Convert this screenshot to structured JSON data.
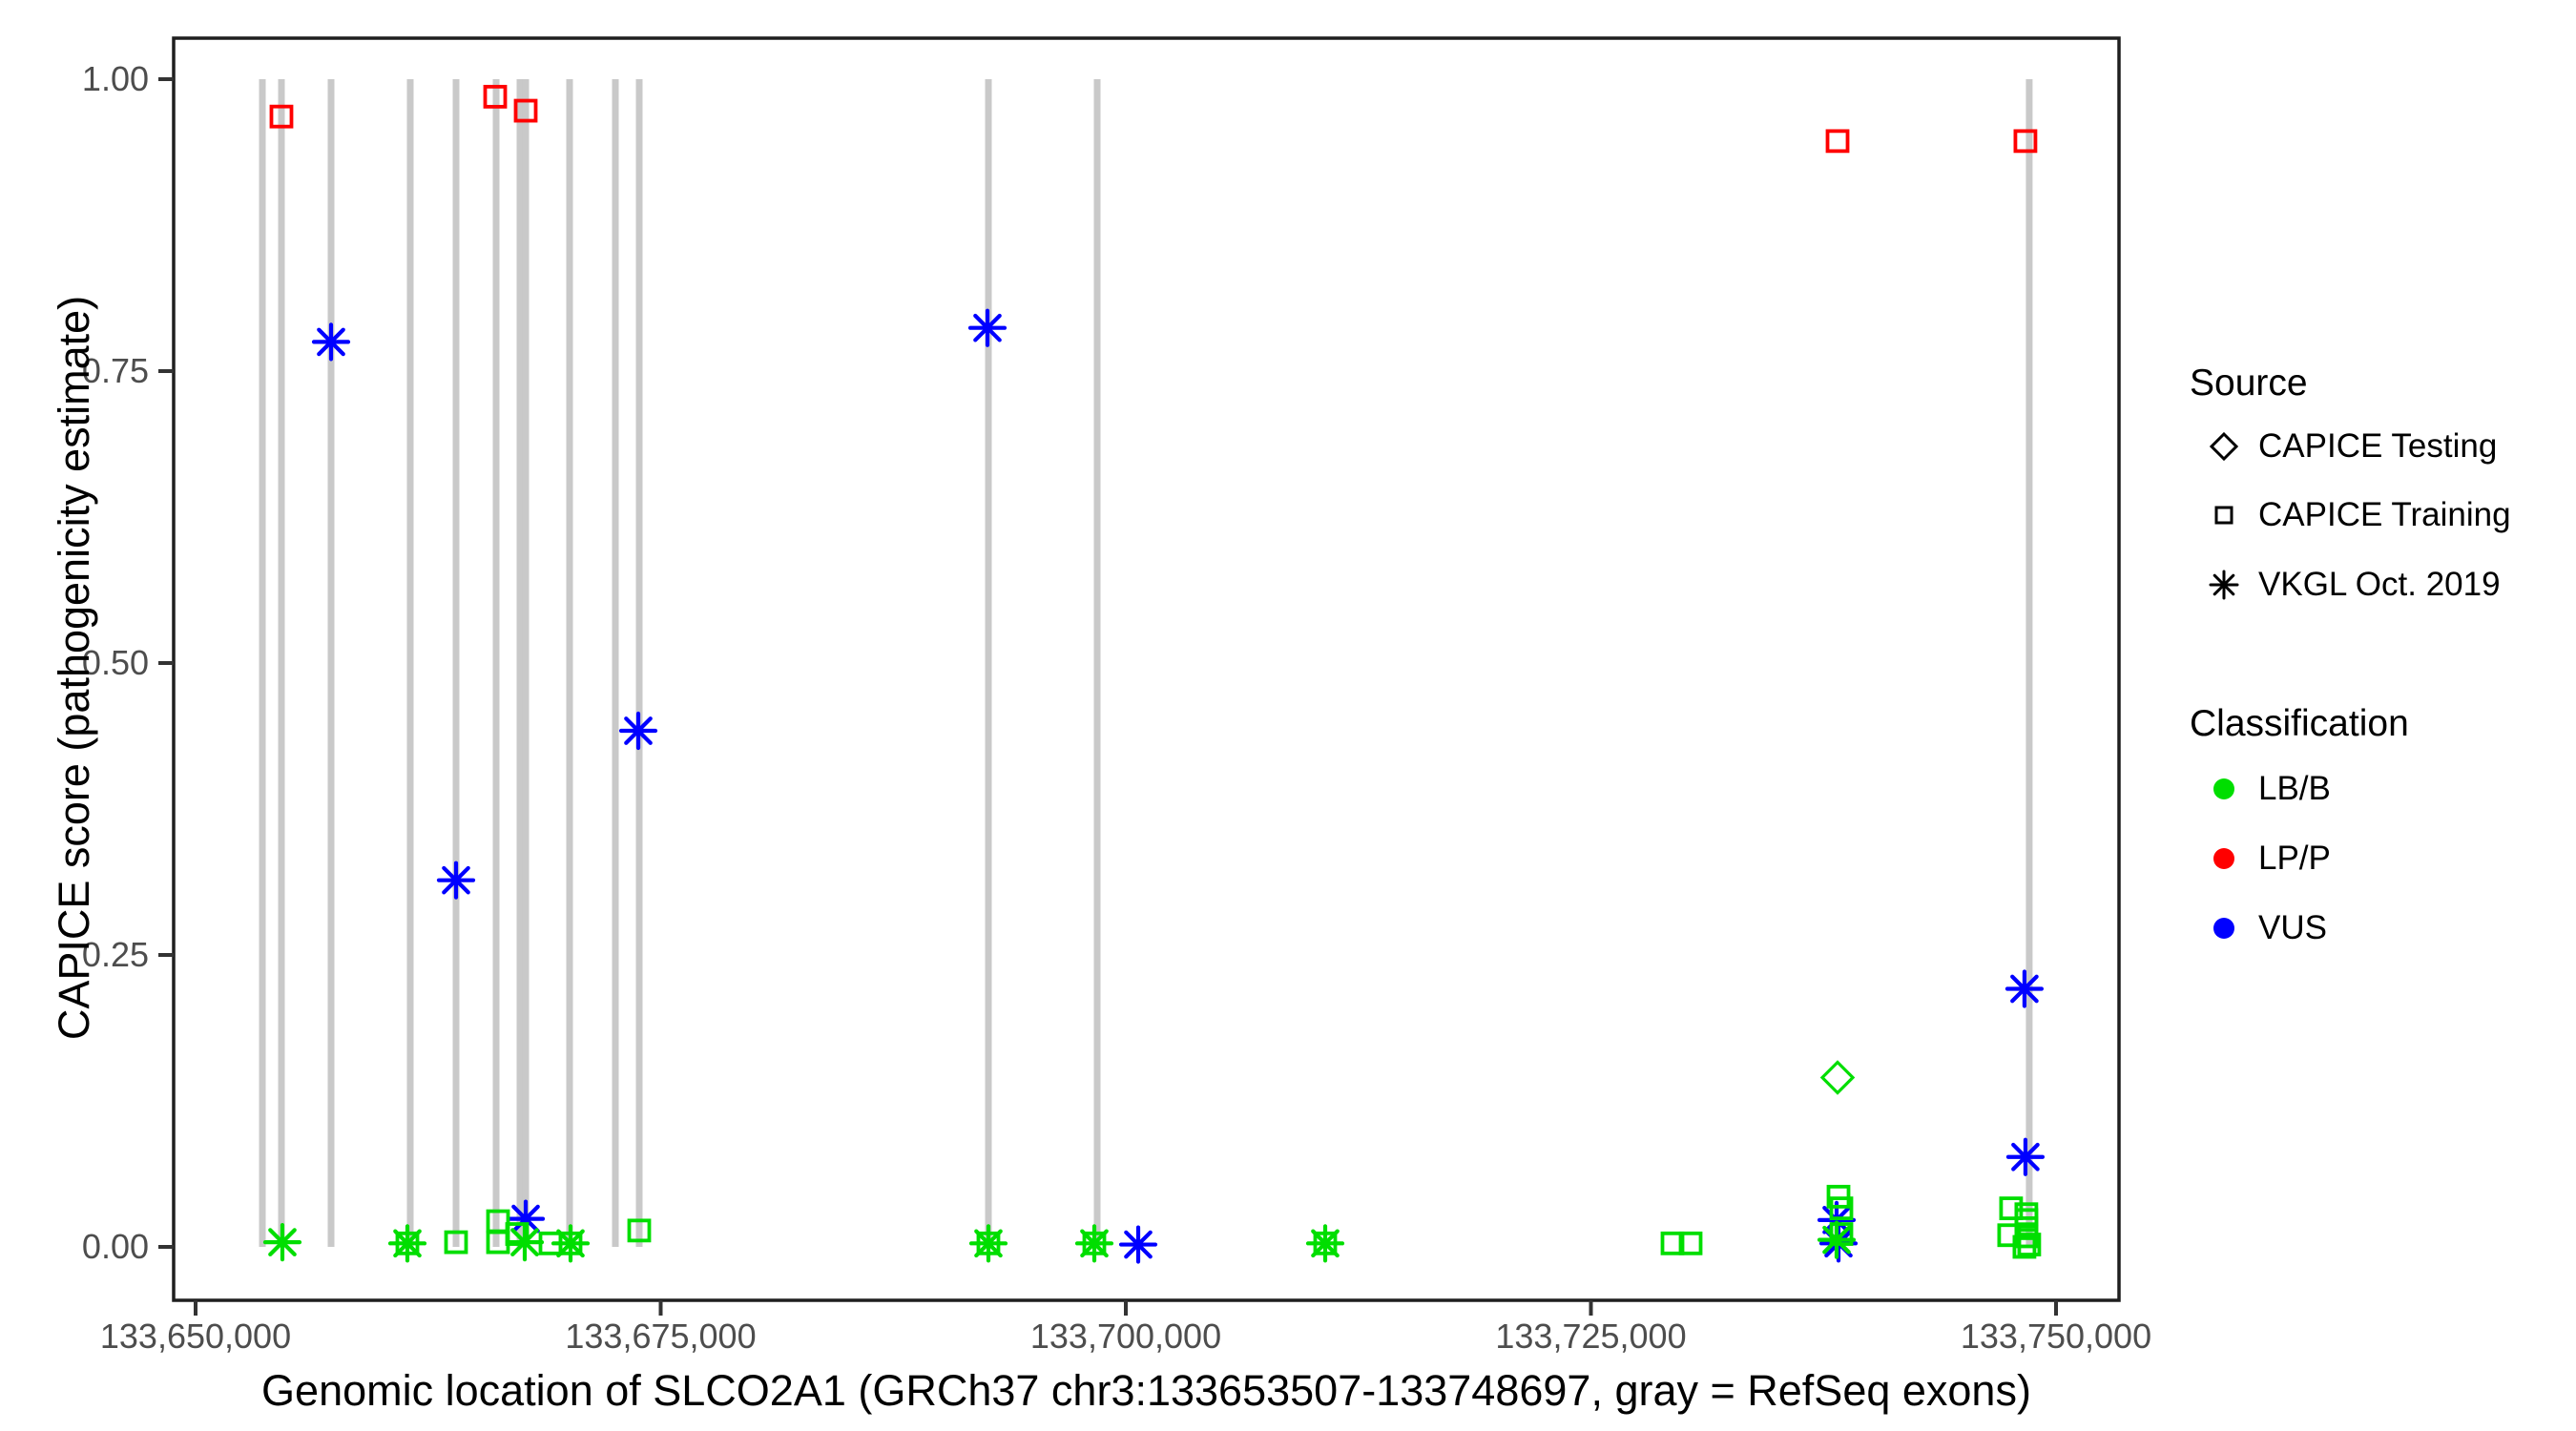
{
  "colors": {
    "lbb_green": "#00DE00",
    "lpp_red": "#FF0000",
    "vus_blue": "#0000FF",
    "exon_gray": "#C9C9C9",
    "border": "#1F1F1F",
    "tick": "#333333",
    "tick_label": "#4D4D4D"
  },
  "axes": {
    "x_title": "Genomic location of SLCO2A1 (GRCh37 chr3:133653507-133748697, gray = RefSeq exons)",
    "y_title": "CAPICE score (pathogenicity estimate)",
    "x_ticks": [
      {
        "value": 133650000,
        "label": "133,650,000"
      },
      {
        "value": 133675000,
        "label": "133,675,000"
      },
      {
        "value": 133700000,
        "label": "133,700,000"
      },
      {
        "value": 133725000,
        "label": "133,725,000"
      },
      {
        "value": 133750000,
        "label": "133,750,000"
      }
    ],
    "y_ticks": [
      {
        "value": 1.0,
        "label": "1.00"
      },
      {
        "value": 0.75,
        "label": "0.75"
      },
      {
        "value": 0.5,
        "label": "0.50"
      },
      {
        "value": 0.25,
        "label": "0.25"
      },
      {
        "value": 0.0,
        "label": "0.00"
      }
    ]
  },
  "legend": {
    "source_title": "Source",
    "source_items": [
      {
        "label": "CAPICE Testing",
        "marker": "diamond"
      },
      {
        "label": "CAPICE Training",
        "marker": "square"
      },
      {
        "label": "VKGL Oct. 2019",
        "marker": "asterisk"
      }
    ],
    "classification_title": "Classification",
    "classification_items": [
      {
        "label": "LB/B",
        "color_key": "lbb_green"
      },
      {
        "label": "LP/P",
        "color_key": "lpp_red"
      },
      {
        "label": "VUS",
        "color_key": "vus_blue"
      }
    ]
  },
  "chart_data": {
    "type": "scatter",
    "title": "",
    "xlabel": "Genomic location of SLCO2A1 (GRCh37 chr3:133653507-133748697, gray = RefSeq exons)",
    "ylabel": "CAPICE score (pathogenicity estimate)",
    "xlim": [
      133648820,
      133753385
    ],
    "ylim": [
      -0.046,
      1.035
    ],
    "grid": false,
    "legend_position": "right",
    "exons_note": "gray vertical segments spanning score 0 to 1 = RefSeq exons",
    "exons": [
      133653590,
      133654615,
      133657282,
      133661538,
      133664000,
      133666154,
      133667436,
      133667744,
      133670103,
      133672564,
      133673846,
      133692615,
      133698462,
      133748560
    ],
    "series": [
      {
        "name": "CAPICE Training / LP/P",
        "source": "CAPICE Training",
        "classification": "LP/P",
        "marker": "square",
        "color_key": "lpp_red",
        "points": [
          {
            "x": 133654615,
            "y": 0.968
          },
          {
            "x": 133666103,
            "y": 0.985
          },
          {
            "x": 133667744,
            "y": 0.973
          },
          {
            "x": 133738257,
            "y": 0.947
          },
          {
            "x": 133748355,
            "y": 0.947
          }
        ]
      },
      {
        "name": "VKGL Oct. 2019 / VUS",
        "source": "VKGL Oct. 2019",
        "classification": "VUS",
        "marker": "asterisk",
        "color_key": "vus_blue",
        "points": [
          {
            "x": 133657282,
            "y": 0.775
          },
          {
            "x": 133664000,
            "y": 0.314
          },
          {
            "x": 133673795,
            "y": 0.442
          },
          {
            "x": 133692564,
            "y": 0.787
          },
          {
            "x": 133667744,
            "y": 0.024
          },
          {
            "x": 133700667,
            "y": 0.002
          },
          {
            "x": 133738205,
            "y": 0.023
          },
          {
            "x": 133738308,
            "y": 0.003
          },
          {
            "x": 133748303,
            "y": 0.221
          },
          {
            "x": 133748355,
            "y": 0.077
          }
        ]
      },
      {
        "name": "CAPICE Testing / LB/B",
        "source": "CAPICE Testing",
        "classification": "LB/B",
        "marker": "diamond",
        "color_key": "lbb_green",
        "points": [
          {
            "x": 133738257,
            "y": 0.145
          }
        ]
      },
      {
        "name": "VKGL Oct. 2019 / LB/B",
        "source": "VKGL Oct. 2019",
        "classification": "LB/B",
        "marker": "asterisk",
        "color_key": "lbb_green",
        "points": [
          {
            "x": 133654666,
            "y": 0.004
          },
          {
            "x": 133661385,
            "y": 0.003
          },
          {
            "x": 133667692,
            "y": 0.004
          },
          {
            "x": 133670154,
            "y": 0.003
          },
          {
            "x": 133692615,
            "y": 0.003
          },
          {
            "x": 133698308,
            "y": 0.003
          },
          {
            "x": 133710718,
            "y": 0.003
          },
          {
            "x": 133738205,
            "y": 0.006
          }
        ]
      },
      {
        "name": "CAPICE Training / LB/B",
        "source": "CAPICE Training",
        "classification": "LB/B",
        "marker": "square",
        "color_key": "lbb_green",
        "points": [
          {
            "x": 133661385,
            "y": 0.003
          },
          {
            "x": 133664000,
            "y": 0.004
          },
          {
            "x": 133666256,
            "y": 0.022
          },
          {
            "x": 133666256,
            "y": 0.004
          },
          {
            "x": 133667282,
            "y": 0.011
          },
          {
            "x": 133669077,
            "y": 0.003
          },
          {
            "x": 133670154,
            "y": 0.003
          },
          {
            "x": 133673846,
            "y": 0.014
          },
          {
            "x": 133692615,
            "y": 0.003
          },
          {
            "x": 133698308,
            "y": 0.003
          },
          {
            "x": 133710718,
            "y": 0.003
          },
          {
            "x": 133729385,
            "y": 0.003
          },
          {
            "x": 133730359,
            "y": 0.003
          },
          {
            "x": 133738308,
            "y": 0.043
          },
          {
            "x": 133738462,
            "y": 0.033
          },
          {
            "x": 133738462,
            "y": 0.011
          },
          {
            "x": 133747585,
            "y": 0.033
          },
          {
            "x": 133748405,
            "y": 0.028
          },
          {
            "x": 133748405,
            "y": 0.023
          },
          {
            "x": 133748405,
            "y": 0.016
          },
          {
            "x": 133747482,
            "y": 0.01
          },
          {
            "x": 133748405,
            "y": 0.009
          },
          {
            "x": 133748560,
            "y": 0.002
          },
          {
            "x": 133748303,
            "y": 0.0
          }
        ]
      }
    ]
  }
}
